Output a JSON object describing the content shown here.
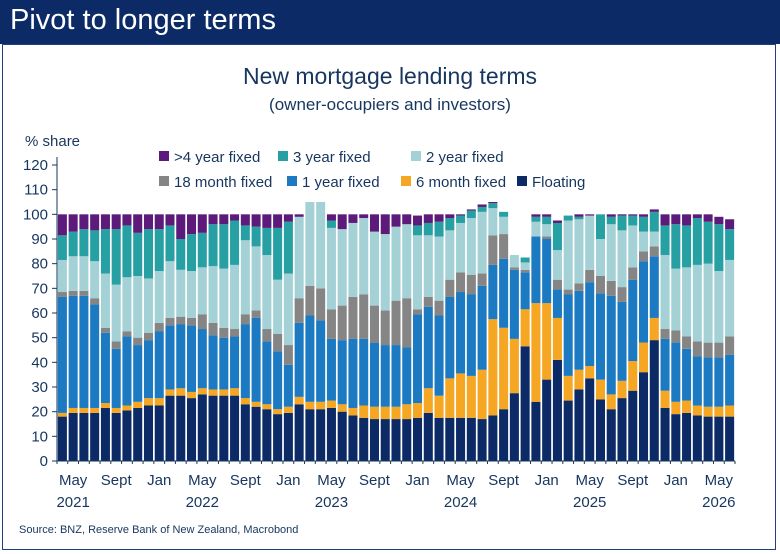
{
  "header": {
    "title": "Pivot to longer terms"
  },
  "source": "Source: BNZ, Reserve Bank of New Zealand, Macrobond",
  "chart_data": {
    "type": "bar",
    "stacked": true,
    "title": "New mortgage lending terms",
    "subtitle": "(owner-occupiers and investors)",
    "ylabel": "% share",
    "ylim": [
      0,
      120
    ],
    "yticks": [
      0,
      10,
      20,
      30,
      40,
      50,
      60,
      70,
      80,
      90,
      100,
      110,
      120
    ],
    "grid": false,
    "legend": "top-left, inside plot",
    "x_tick_labels": [
      {
        "month": "May",
        "year": "2021"
      },
      {
        "month": "Sept",
        "year": ""
      },
      {
        "month": "Jan",
        "year": ""
      },
      {
        "month": "May",
        "year": "2022"
      },
      {
        "month": "Sept",
        "year": ""
      },
      {
        "month": "Jan",
        "year": ""
      },
      {
        "month": "May",
        "year": "2023"
      },
      {
        "month": "Sept",
        "year": ""
      },
      {
        "month": "Jan",
        "year": ""
      },
      {
        "month": "May",
        "year": "2024"
      },
      {
        "month": "Sept",
        "year": ""
      },
      {
        "month": "Jan",
        "year": ""
      },
      {
        "month": "May",
        "year": "2025"
      },
      {
        "month": "Sept",
        "year": ""
      },
      {
        "month": "Jan",
        "year": ""
      },
      {
        "month": "May",
        "year": "2026"
      }
    ],
    "x_tick_month_index": [
      1,
      5,
      9,
      13,
      17,
      21,
      25,
      29,
      33,
      37,
      41,
      45,
      49,
      53,
      57,
      61
    ],
    "categories": [
      "2021-04",
      "2021-05",
      "2021-06",
      "2021-07",
      "2021-08",
      "2021-09",
      "2021-10",
      "2021-11",
      "2021-12",
      "2022-01",
      "2022-02",
      "2022-03",
      "2022-04",
      "2022-05",
      "2022-06",
      "2022-07",
      "2022-08",
      "2022-09",
      "2022-10",
      "2022-11",
      "2022-12",
      "2023-01",
      "2023-02",
      "2023-03",
      "2023-04",
      "2023-05",
      "2023-06",
      "2023-07",
      "2023-08",
      "2023-09",
      "2023-10",
      "2023-11",
      "2023-12",
      "2024-01",
      "2024-02",
      "2024-03",
      "2024-04",
      "2024-05",
      "2024-06",
      "2024-07",
      "2024-08",
      "2024-09",
      "2024-10",
      "2024-11",
      "2024-12",
      "2025-01",
      "2025-02",
      "2025-03",
      "2025-04",
      "2025-05",
      "2025-06",
      "2025-07",
      "2025-08",
      "2025-09",
      "2025-10",
      "2025-11",
      "2025-12",
      "2026-01",
      "2026-02",
      "2026-03",
      "2026-04",
      "2026-05",
      "2026-06"
    ],
    "legend_rows": [
      [
        ">4 year fixed",
        "3 year fixed",
        "2 year fixed"
      ],
      [
        "18 month fixed",
        "1 year fixed",
        "6 month fixed",
        "Floating"
      ]
    ],
    "series": [
      {
        "name": "Floating",
        "color": "#0b2a66",
        "values": [
          18,
          19.5,
          19.5,
          19.5,
          21.5,
          19.5,
          20.5,
          21.5,
          22.5,
          22.5,
          26.5,
          26.5,
          25.5,
          27,
          26.5,
          26.5,
          26.5,
          23,
          22,
          21,
          19,
          19.5,
          23,
          21,
          21,
          21.5,
          20,
          18.5,
          17.5,
          17,
          17,
          17,
          17,
          17.5,
          19.5,
          17.5,
          17.5,
          17.5,
          17.5,
          17,
          18.5,
          21,
          27.5,
          46.5,
          24,
          33,
          41,
          24.5,
          29,
          33.5,
          25,
          21,
          25.5,
          28.5,
          36,
          49,
          21.5,
          19,
          19.5,
          18.5,
          18,
          18,
          18
        ]
      },
      {
        "name": "6 month fixed",
        "color": "#f5a623",
        "values": [
          1.5,
          2,
          2,
          2,
          2,
          2,
          2,
          2.5,
          3,
          3,
          2.5,
          3,
          2.5,
          2.5,
          2.5,
          2.5,
          3,
          2.5,
          2,
          2,
          2,
          2.5,
          3,
          3,
          3,
          3,
          3,
          3,
          5,
          5,
          5,
          5,
          6,
          6,
          10,
          9,
          16,
          18,
          17,
          20,
          39,
          33,
          22,
          15,
          40,
          31,
          17,
          10,
          8,
          5,
          8,
          6,
          7,
          12,
          12,
          9,
          7,
          5,
          5,
          4,
          4,
          4,
          4.5
        ]
      },
      {
        "name": "1 year fixed",
        "color": "#1b7ac2",
        "values": [
          47,
          45.5,
          45.5,
          42,
          28.5,
          24,
          28,
          23,
          23.5,
          27,
          26,
          26,
          27,
          24,
          22,
          21,
          21,
          30,
          34,
          25.5,
          23.5,
          17,
          30,
          35,
          33,
          25,
          26,
          28,
          27,
          26,
          25,
          25,
          23,
          36,
          33,
          32.5,
          33,
          33,
          33,
          34,
          22,
          28,
          28,
          15,
          27,
          26,
          11.5,
          33,
          32,
          34,
          35,
          40,
          32,
          33,
          33,
          25,
          21,
          24,
          21,
          20,
          20,
          20,
          20.5
        ]
      },
      {
        "name": "18 month fixed",
        "color": "#858585",
        "values": [
          2,
          2,
          2,
          2.5,
          2,
          3,
          2,
          3,
          3,
          3.5,
          3,
          3,
          3,
          6,
          5,
          4,
          3,
          4,
          3,
          5,
          7,
          8,
          10,
          12,
          13,
          12,
          14,
          17,
          18,
          15,
          14,
          18,
          20,
          2,
          4,
          6,
          7,
          8,
          8,
          5,
          12,
          10,
          1,
          1,
          0,
          1,
          4,
          2,
          3,
          5,
          7,
          6,
          6,
          5,
          4,
          4,
          4,
          5,
          5,
          6,
          6,
          6,
          7.5
        ]
      },
      {
        "name": "2 year fixed",
        "color": "#a3d1d6",
        "values": [
          13,
          14,
          14,
          15,
          22,
          23,
          22,
          25,
          22,
          21,
          23,
          19,
          19,
          19,
          23,
          24,
          26,
          30,
          26,
          30,
          22,
          29,
          33,
          34,
          35,
          33,
          31,
          30,
          31,
          30,
          31,
          30,
          30,
          30,
          25,
          26,
          20,
          20,
          23,
          25,
          11,
          7,
          5,
          3,
          6,
          5,
          12,
          28,
          26,
          22,
          15,
          23,
          23,
          17,
          8,
          6,
          30,
          25,
          28,
          31,
          32,
          29,
          31
        ]
      },
      {
        "name": "3 year fixed",
        "color": "#27a0a3",
        "values": [
          10,
          10,
          11,
          12.5,
          18,
          22.5,
          21,
          17.5,
          20,
          17,
          14.5,
          12.5,
          15,
          14,
          17,
          18,
          18,
          6,
          8,
          11,
          21,
          21,
          0,
          0,
          0,
          3,
          0,
          0,
          0,
          0,
          0,
          0,
          0,
          4,
          5,
          6,
          5,
          3,
          3,
          2,
          2,
          2,
          0,
          2,
          2,
          3,
          11,
          2,
          1,
          0,
          10,
          3,
          6,
          4,
          6,
          8,
          12,
          18,
          17,
          19,
          17,
          19,
          12.5
        ]
      },
      {
        "name": ">4 year fixed",
        "color": "#5c1a7a",
        "values": [
          8.5,
          7,
          6,
          6.5,
          6,
          6,
          4.5,
          7.5,
          6,
          6,
          4.5,
          10,
          8,
          7.5,
          4,
          4,
          2.5,
          4.5,
          5,
          5.5,
          5.5,
          3,
          1,
          0,
          0,
          2.5,
          6,
          3.5,
          1.5,
          7,
          8,
          5,
          4,
          4,
          3.5,
          3,
          1.5,
          0.5,
          0.5,
          1,
          0.5,
          0,
          0,
          0,
          1,
          1,
          1,
          0,
          1,
          0.5,
          0,
          1,
          0.5,
          0.5,
          1,
          1,
          4.5,
          4,
          4.5,
          1.5,
          3,
          3,
          4
        ]
      }
    ]
  }
}
